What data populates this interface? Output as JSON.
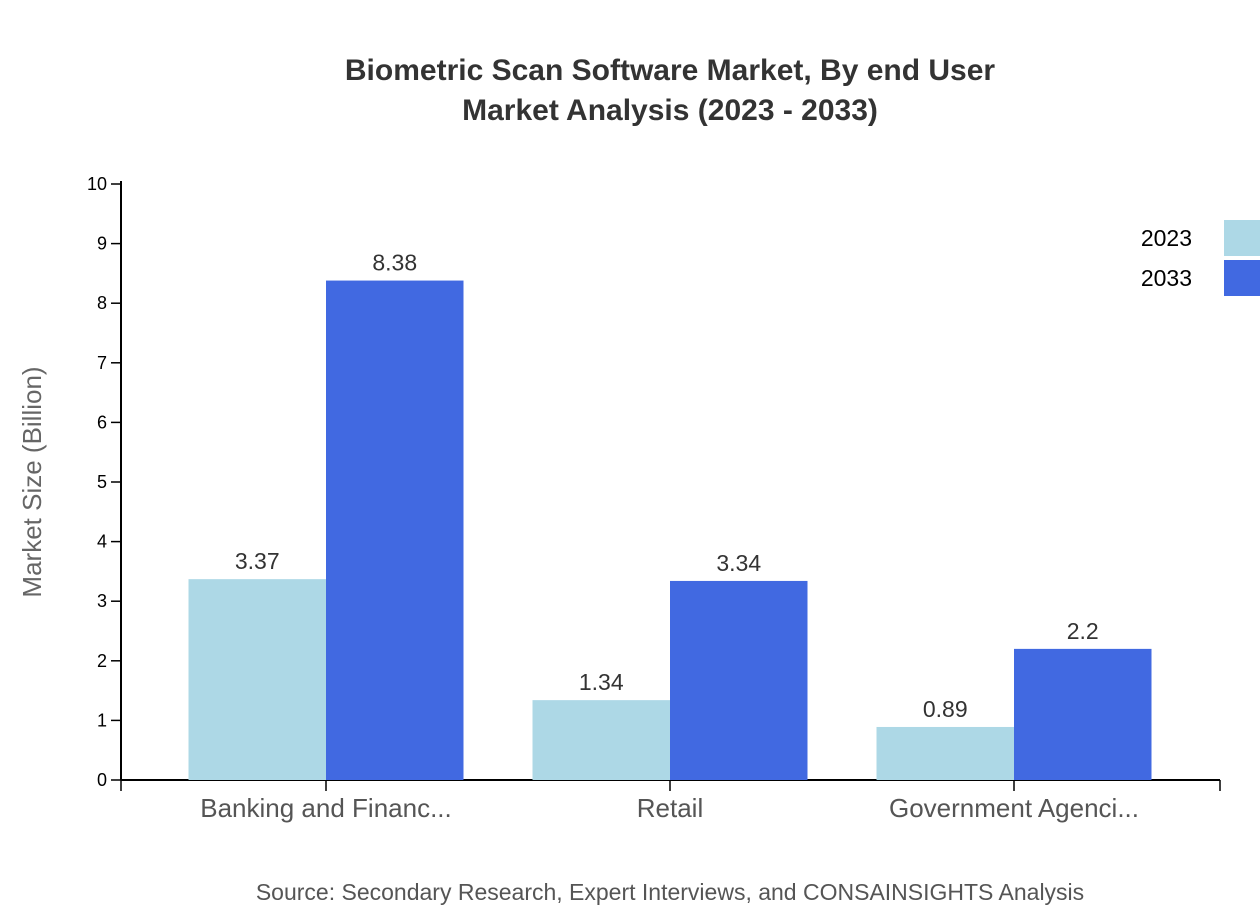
{
  "chart_data": {
    "type": "bar",
    "title": "Biometric Scan Software Market, By end User",
    "subtitle": "Market Analysis (2023 - 2033)",
    "ylabel": "Market Size (Billion)",
    "xlabel": "",
    "ylim": [
      0,
      10
    ],
    "yticks": [
      "0",
      "1",
      "2",
      "3",
      "4",
      "5",
      "6",
      "7",
      "8",
      "9",
      "10"
    ],
    "categories": [
      "Banking and Financ...",
      "Retail",
      "Government Agenci..."
    ],
    "series": [
      {
        "name": "2023",
        "values": [
          3.37,
          1.34,
          0.89
        ],
        "labels": [
          "3.37",
          "1.34",
          "0.89"
        ],
        "color": "#add8e6"
      },
      {
        "name": "2033",
        "values": [
          8.38,
          3.34,
          2.2
        ],
        "labels": [
          "8.38",
          "3.34",
          "2.2"
        ],
        "color": "#4169e1"
      }
    ],
    "legend_position": "top-right",
    "grid": false,
    "source": "Source: Secondary Research, Expert Interviews, and CONSAINSIGHTS Analysis"
  }
}
